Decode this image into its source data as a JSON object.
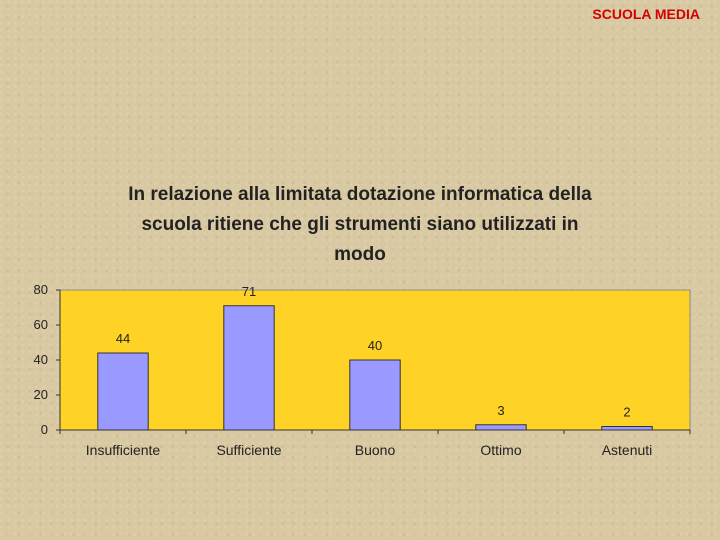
{
  "header": {
    "label": "SCUOLA MEDIA"
  },
  "colors": {
    "plot_bg": "#ffd325",
    "bar_fill": "#9999ff",
    "header_text": "#d40000"
  },
  "chart_data": {
    "type": "bar",
    "title": "In relazione alla limitata dotazione informatica della\nscuola ritiene che gli strumenti siano utilizzati in\nmodo",
    "categories": [
      "Insufficiente",
      "Sufficiente",
      "Buono",
      "Ottimo",
      "Astenuti"
    ],
    "values": [
      44,
      71,
      40,
      3,
      2
    ],
    "ylim": [
      0,
      80
    ],
    "yticks": [
      0,
      20,
      40,
      60,
      80
    ],
    "xlabel": "",
    "ylabel": "",
    "data_labels": true,
    "grid": false,
    "legend": false
  }
}
